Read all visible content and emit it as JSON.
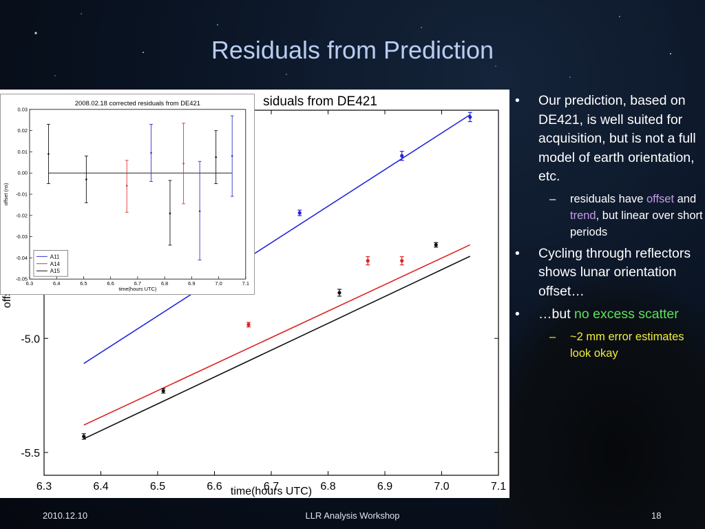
{
  "slide": {
    "title": "Residuals from Prediction",
    "footer_left": "2010.12.10",
    "footer_center": "LLR Analysis Workshop",
    "footer_right": "18"
  },
  "bullets": {
    "b1": "Our prediction, based on DE421, is well suited for acquisition, but is not a full model of earth orientation, etc.",
    "b1_sub_pre": "residuals have ",
    "b1_sub_offset": "offset",
    "b1_sub_mid": " and ",
    "b1_sub_trend": "trend",
    "b1_sub_post": ", but linear over short periods",
    "b2": "Cycling through reflectors shows lunar orientation offset…",
    "b3_pre": "…but ",
    "b3_green": "no excess scatter",
    "b3_sub": "~2 mm error estimates look okay",
    "colors": {
      "offset": "#c59be8",
      "trend": "#c59be8",
      "scatter": "#5de25d",
      "sub": "#f1ee3a"
    }
  },
  "chart_data": [
    {
      "type": "scatter",
      "title": "siduals from DE421",
      "xlabel": "time(hours UTC)",
      "ylabel": "offse",
      "xlim": [
        6.3,
        7.1
      ],
      "ylim": [
        -5.6,
        -4.0
      ],
      "xticks": [
        "6.3",
        "6.4",
        "6.5",
        "6.6",
        "6.7",
        "6.8",
        "6.9",
        "7.0",
        "7.1"
      ],
      "yticks": [
        "-5.0",
        "-5.5"
      ],
      "grid": false,
      "series": [
        {
          "color": "#2222dd",
          "points": [
            [
              6.75,
              -4.45
            ],
            [
              6.93,
              -4.2
            ],
            [
              7.05,
              -4.03
            ]
          ],
          "err": [
            0.012,
            0.02,
            0.02
          ],
          "fit": [
            [
              6.37,
              -5.11
            ],
            [
              7.05,
              -4.02
            ]
          ]
        },
        {
          "color": "#dd2222",
          "points": [
            [
              6.66,
              -4.94
            ],
            [
              6.87,
              -4.66
            ],
            [
              6.93,
              -4.66
            ]
          ],
          "err": [
            0.01,
            0.018,
            0.018
          ],
          "fit": [
            [
              6.37,
              -5.38
            ],
            [
              7.05,
              -4.59
            ]
          ]
        },
        {
          "color": "#111111",
          "points": [
            [
              6.37,
              -5.43
            ],
            [
              6.51,
              -5.23
            ],
            [
              6.82,
              -4.8
            ],
            [
              6.99,
              -4.59
            ]
          ],
          "err": [
            0.012,
            0.01,
            0.015,
            0.01
          ],
          "fit": [
            [
              6.37,
              -5.44
            ],
            [
              7.05,
              -4.64
            ]
          ]
        }
      ]
    },
    {
      "type": "scatter",
      "title": "2008.02.18 corrected residuals from DE421",
      "xlabel": "time(hours UTC)",
      "ylabel": "offset (ns)",
      "xlim": [
        6.3,
        7.1
      ],
      "ylim": [
        -0.05,
        0.03
      ],
      "xticks": [
        "6.3",
        "6.4",
        "6.5",
        "6.6",
        "6.7",
        "6.8",
        "6.9",
        "7.0",
        "7.1"
      ],
      "yticks": [
        "0.03",
        "0.02",
        "0.01",
        "0.00",
        "-0.01",
        "-0.02",
        "-0.03",
        "-0.04",
        "-0.05"
      ],
      "grid": false,
      "legend": "bottom-left",
      "zero_line": [
        6.37,
        7.05
      ],
      "series": [
        {
          "name": "A11",
          "color": "#3333cc",
          "points": [
            [
              6.75,
              0.0095,
              -0.004,
              0.023
            ],
            [
              6.93,
              -0.018,
              -0.041,
              0.0055
            ],
            [
              7.05,
              0.008,
              -0.011,
              0.027
            ]
          ]
        },
        {
          "name": "A14",
          "color": "#dd3333",
          "points": [
            [
              6.66,
              -0.006,
              -0.0185,
              0.006
            ],
            [
              6.87,
              0.0045,
              -0.0145,
              0.0235
            ]
          ]
        },
        {
          "name": "A15",
          "color": "#111111",
          "points": [
            [
              6.37,
              0.009,
              -0.005,
              0.023
            ],
            [
              6.51,
              -0.003,
              -0.014,
              0.008
            ],
            [
              6.82,
              -0.019,
              -0.034,
              -0.0035
            ],
            [
              6.99,
              0.0075,
              -0.005,
              0.02
            ]
          ]
        }
      ]
    }
  ]
}
